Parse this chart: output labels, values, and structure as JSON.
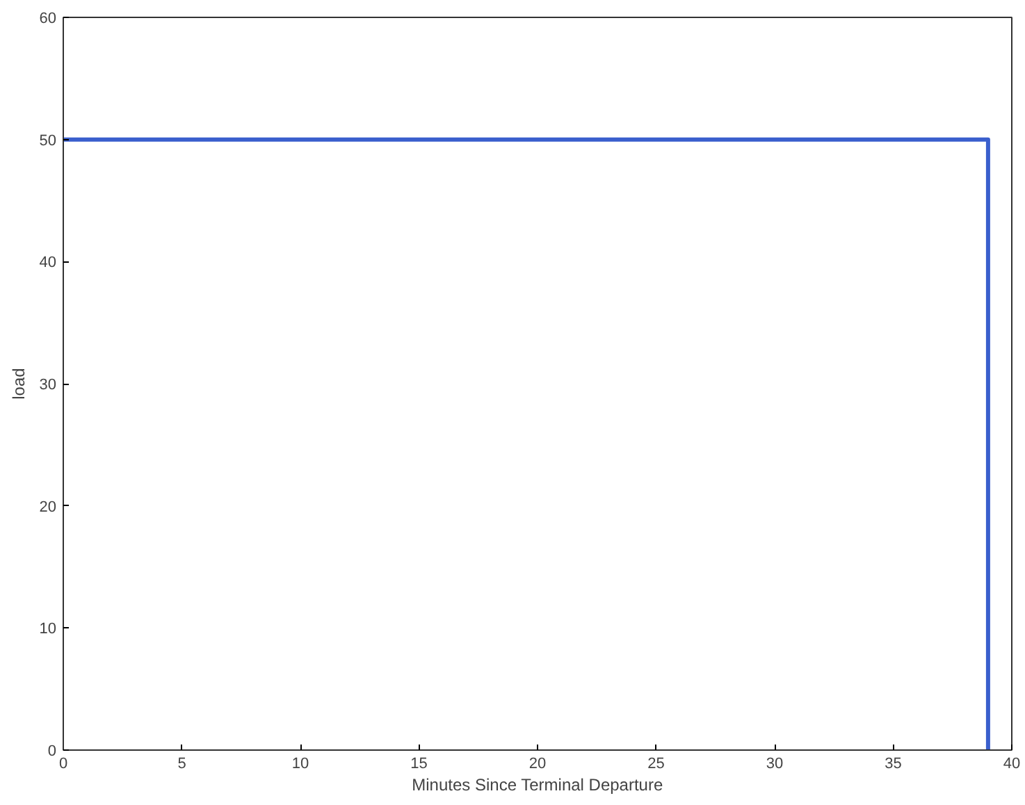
{
  "chart_data": {
    "type": "step",
    "xlabel": "Minutes Since Terminal Departure",
    "ylabel": "load",
    "x": [
      0,
      39
    ],
    "series": [
      {
        "color": "#3a5fcd",
        "values": [
          50,
          0
        ]
      }
    ],
    "xlim": [
      0,
      40
    ],
    "ylim": [
      0,
      60
    ],
    "xticks": [
      0,
      5,
      10,
      15,
      20,
      25,
      30,
      35,
      40
    ],
    "yticks": [
      0,
      10,
      20,
      30,
      40,
      50,
      60
    ],
    "grid": false
  }
}
